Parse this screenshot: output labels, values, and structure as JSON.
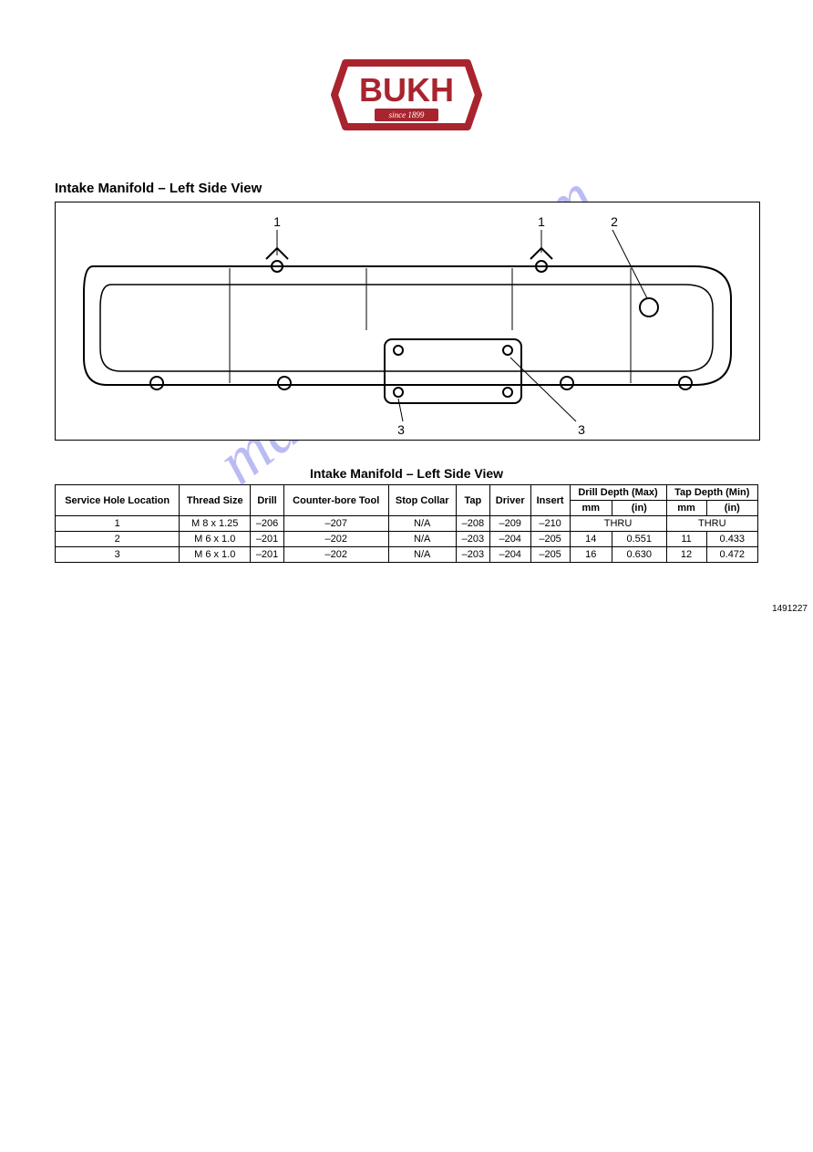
{
  "logo": {
    "brand": "BUKH",
    "since_label": "since",
    "since_year": "1899",
    "border_color": "#a8242f",
    "text_color": "#ffffff"
  },
  "watermark": "manualslive.com",
  "section_title": "Intake Manifold – Left Side View",
  "figure": {
    "number": "1491227",
    "callouts": [
      "1",
      "1",
      "2",
      "3",
      "3"
    ]
  },
  "table": {
    "title": "Intake Manifold – Left Side View",
    "headers": {
      "service_hole": "Service Hole Location",
      "thread_size": "Thread Size",
      "drill": "Drill",
      "counter_bore": "Counter-bore Tool",
      "stop_collar": "Stop Collar",
      "tap": "Tap",
      "driver": "Driver",
      "insert": "Insert",
      "drill_depth_group": "Drill Depth (Max)",
      "tap_depth_group": "Tap Depth (Min)",
      "mm": "mm",
      "in": "(in)"
    },
    "rows": [
      {
        "loc": "1",
        "thread": "M 8 x 1.25",
        "drill": "–206",
        "cbore": "–207",
        "collar": "N/A",
        "tap": "–208",
        "driver": "–209",
        "insert": "–210",
        "dd_mm": "THRU",
        "dd_in": "",
        "td_mm": "THRU",
        "td_in": ""
      },
      {
        "loc": "2",
        "thread": "M 6 x 1.0",
        "drill": "–201",
        "cbore": "–202",
        "collar": "N/A",
        "tap": "–203",
        "driver": "–204",
        "insert": "–205",
        "dd_mm": "14",
        "dd_in": "0.551",
        "td_mm": "11",
        "td_in": "0.433"
      },
      {
        "loc": "3",
        "thread": "M 6 x 1.0",
        "drill": "–201",
        "cbore": "–202",
        "collar": "N/A",
        "tap": "–203",
        "driver": "–204",
        "insert": "–205",
        "dd_mm": "16",
        "dd_in": "0.630",
        "td_mm": "12",
        "td_in": "0.472"
      }
    ]
  }
}
